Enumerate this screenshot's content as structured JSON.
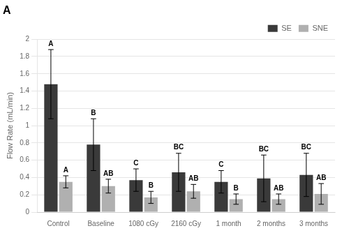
{
  "chart_data": {
    "type": "bar",
    "title": "A",
    "categories": [
      "Control",
      "Baseline",
      "1080 cGy",
      "2160 cGy",
      "1 month",
      "2 months",
      "3 months"
    ],
    "series": [
      {
        "name": "SE",
        "color": "#3a3a3a",
        "values": [
          1.48,
          0.78,
          0.37,
          0.46,
          0.35,
          0.39,
          0.43
        ],
        "errors": [
          0.4,
          0.3,
          0.13,
          0.22,
          0.13,
          0.27,
          0.25
        ],
        "annotations": [
          "A",
          "B",
          "C",
          "BC",
          "C",
          "BC",
          "BC"
        ]
      },
      {
        "name": "SNE",
        "color": "#b0b0b0",
        "values": [
          0.35,
          0.3,
          0.17,
          0.24,
          0.15,
          0.15,
          0.21
        ],
        "errors": [
          0.07,
          0.08,
          0.07,
          0.08,
          0.06,
          0.06,
          0.12
        ],
        "annotations": [
          "A",
          "AB",
          "B",
          "AB",
          "B",
          "AB",
          "AB"
        ]
      }
    ],
    "ylabel": "Flow Rate (mL/min)",
    "ylim": [
      0,
      2.0
    ],
    "yticks": [
      0,
      0.2,
      0.4,
      0.6,
      0.8,
      1,
      1.2,
      1.4,
      1.6,
      1.8,
      2
    ],
    "grid": true,
    "legend": "upper right"
  }
}
